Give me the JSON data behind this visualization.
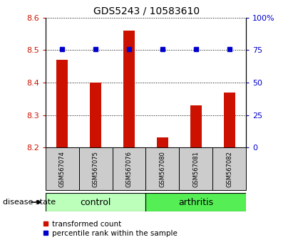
{
  "title": "GDS5243 / 10583610",
  "samples": [
    "GSM567074",
    "GSM567075",
    "GSM567076",
    "GSM567080",
    "GSM567081",
    "GSM567082"
  ],
  "transformed_counts": [
    8.47,
    8.4,
    8.56,
    8.23,
    8.33,
    8.37
  ],
  "percentile_ranks": [
    76,
    76,
    76,
    76,
    76,
    76
  ],
  "ylim_left": [
    8.2,
    8.6
  ],
  "ylim_right": [
    0,
    100
  ],
  "yticks_left": [
    8.2,
    8.3,
    8.4,
    8.5,
    8.6
  ],
  "yticks_right": [
    0,
    25,
    50,
    75,
    100
  ],
  "bar_color": "#cc1100",
  "dot_color": "#0000cc",
  "control_color": "#bbffbb",
  "arthritis_color": "#55ee55",
  "label_bg_color": "#cccccc",
  "bar_width": 0.35,
  "title_fontsize": 10,
  "tick_fontsize": 8,
  "sample_fontsize": 6,
  "legend_fontsize": 7.5,
  "group_fontsize": 9
}
